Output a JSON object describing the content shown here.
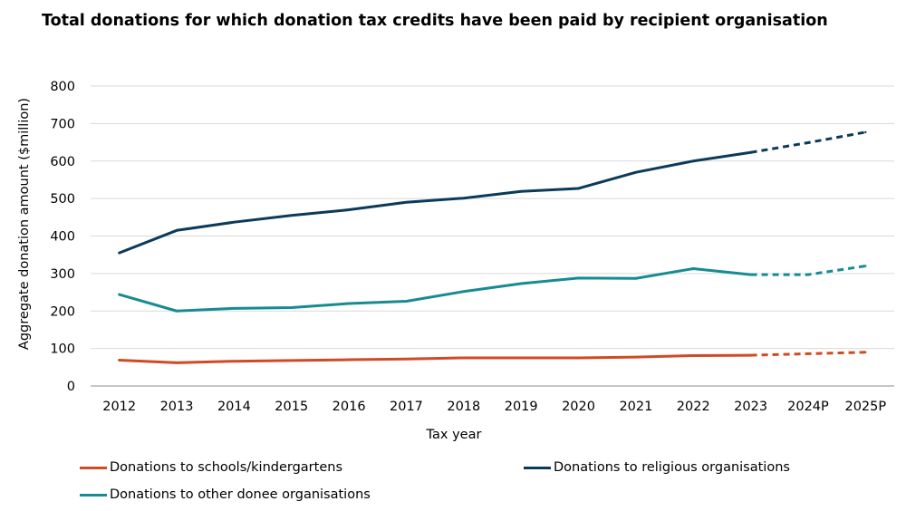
{
  "chart_data": {
    "type": "line",
    "title": "Total donations for which donation tax credits have been paid by recipient organisation",
    "xlabel": "Tax year",
    "ylabel": "Aggregate donation amount ($million)",
    "ylim": [
      0,
      800
    ],
    "yticks": [
      0,
      100,
      200,
      300,
      400,
      500,
      600,
      700,
      800
    ],
    "grid": true,
    "legend_position": "bottom",
    "categories": [
      "2012",
      "2013",
      "2014",
      "2015",
      "2016",
      "2017",
      "2018",
      "2019",
      "2020",
      "2021",
      "2022",
      "2023",
      "2024P",
      "2025P"
    ],
    "projected_from_category": "2023",
    "series": [
      {
        "name": "Donations to schools/kindergartens",
        "color": "#d04a22",
        "values": [
          69,
          62,
          66,
          68,
          70,
          72,
          75,
          75,
          75,
          77,
          81,
          82,
          86,
          90
        ]
      },
      {
        "name": "Donations to religious organisations",
        "color": "#0b3a5a",
        "values": [
          355,
          415,
          437,
          455,
          470,
          490,
          501,
          519,
          527,
          570,
          600,
          623,
          649,
          677
        ]
      },
      {
        "name": "Donations to other donee organisations",
        "color": "#178b92",
        "values": [
          244,
          200,
          207,
          209,
          220,
          226,
          252,
          273,
          288,
          287,
          313,
          297,
          297,
          320
        ]
      }
    ]
  }
}
